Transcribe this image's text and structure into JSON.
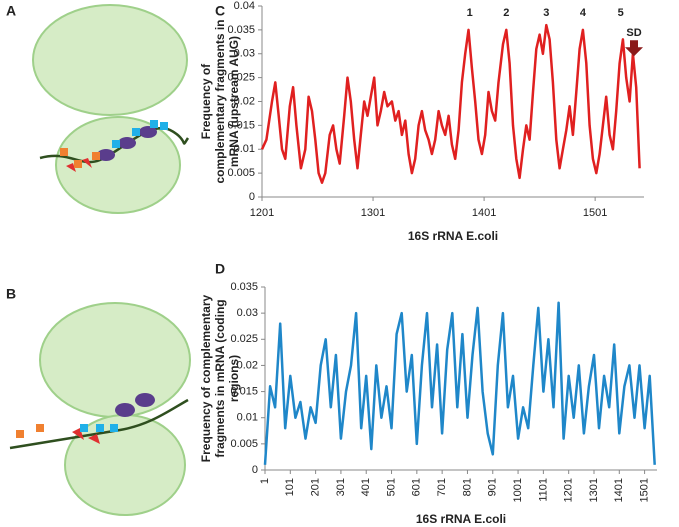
{
  "panel_labels": [
    "A",
    "B",
    "C",
    "D"
  ],
  "chart_data": [
    {
      "type": "line",
      "ylabel": [
        "Frequency of",
        "complementary fragments in",
        "mRNA (upstream AUG)"
      ],
      "xlabel": "16S rRNA E.coli",
      "color": "#e02020",
      "x": [
        1201,
        1205,
        1210,
        1213,
        1216,
        1219,
        1222,
        1226,
        1229,
        1232,
        1236,
        1240,
        1243,
        1246,
        1249,
        1252,
        1255,
        1258,
        1262,
        1265,
        1268,
        1271,
        1275,
        1278,
        1281,
        1284,
        1287,
        1290,
        1293,
        1296,
        1299,
        1302,
        1305,
        1308,
        1311,
        1314,
        1318,
        1321,
        1324,
        1327,
        1330,
        1333,
        1336,
        1339,
        1342,
        1345,
        1348,
        1351,
        1354,
        1357,
        1360,
        1363,
        1366,
        1369,
        1372,
        1375,
        1378,
        1381,
        1384,
        1387,
        1390,
        1393,
        1396,
        1399,
        1402,
        1405,
        1408,
        1411,
        1414,
        1418,
        1421,
        1424,
        1427,
        1430,
        1433,
        1436,
        1439,
        1442,
        1445,
        1448,
        1451,
        1454,
        1457,
        1460,
        1463,
        1466,
        1469,
        1472,
        1475,
        1478,
        1481,
        1484,
        1487,
        1490,
        1493,
        1496,
        1499,
        1502,
        1505,
        1508,
        1511,
        1514,
        1517,
        1520,
        1523,
        1526,
        1529,
        1532,
        1535,
        1538,
        1541
      ],
      "values": [
        0.01,
        0.012,
        0.02,
        0.024,
        0.017,
        0.01,
        0.008,
        0.019,
        0.023,
        0.015,
        0.006,
        0.01,
        0.021,
        0.018,
        0.012,
        0.005,
        0.003,
        0.005,
        0.013,
        0.015,
        0.01,
        0.007,
        0.017,
        0.025,
        0.02,
        0.012,
        0.006,
        0.013,
        0.02,
        0.017,
        0.021,
        0.025,
        0.015,
        0.018,
        0.022,
        0.019,
        0.02,
        0.016,
        0.018,
        0.013,
        0.016,
        0.009,
        0.005,
        0.008,
        0.015,
        0.018,
        0.014,
        0.012,
        0.009,
        0.012,
        0.018,
        0.015,
        0.013,
        0.017,
        0.011,
        0.008,
        0.014,
        0.024,
        0.03,
        0.035,
        0.027,
        0.02,
        0.012,
        0.009,
        0.013,
        0.022,
        0.018,
        0.016,
        0.024,
        0.032,
        0.035,
        0.028,
        0.015,
        0.008,
        0.004,
        0.01,
        0.015,
        0.012,
        0.022,
        0.031,
        0.034,
        0.03,
        0.036,
        0.033,
        0.024,
        0.012,
        0.006,
        0.01,
        0.014,
        0.019,
        0.013,
        0.022,
        0.031,
        0.035,
        0.028,
        0.015,
        0.008,
        0.005,
        0.009,
        0.015,
        0.021,
        0.013,
        0.01,
        0.018,
        0.028,
        0.033,
        0.025,
        0.02,
        0.03,
        0.023,
        0.006
      ],
      "xlim": [
        1201,
        1545
      ],
      "xticks": [
        1201,
        1301,
        1401,
        1501
      ],
      "ylim": [
        0,
        0.04
      ],
      "yticks": [
        0,
        0.005,
        0.01,
        0.015,
        0.02,
        0.025,
        0.03,
        0.035,
        0.04
      ],
      "annotations": [
        {
          "text": "1",
          "x": 1388,
          "y": 0.0385
        },
        {
          "text": "2",
          "x": 1421,
          "y": 0.0385
        },
        {
          "text": "3",
          "x": 1457,
          "y": 0.0385
        },
        {
          "text": "4",
          "x": 1490,
          "y": 0.0385
        },
        {
          "text": "5",
          "x": 1524,
          "y": 0.0385
        },
        {
          "text": "SD",
          "x": 1536,
          "y": 0.0343
        }
      ]
    },
    {
      "type": "line",
      "ylabel": [
        "Frequency of complementary",
        "fragments in mRNA (coding",
        "regions)"
      ],
      "xlabel": "16S rRNA E.coli",
      "color": "#1f87c9",
      "x": [
        1,
        21,
        41,
        61,
        81,
        101,
        121,
        141,
        161,
        181,
        201,
        221,
        241,
        261,
        281,
        301,
        321,
        341,
        361,
        381,
        401,
        421,
        441,
        461,
        481,
        501,
        521,
        541,
        561,
        581,
        601,
        621,
        641,
        661,
        681,
        701,
        721,
        741,
        761,
        781,
        801,
        821,
        841,
        861,
        881,
        901,
        921,
        941,
        961,
        981,
        1001,
        1021,
        1041,
        1061,
        1081,
        1101,
        1121,
        1141,
        1161,
        1181,
        1201,
        1221,
        1241,
        1261,
        1281,
        1301,
        1321,
        1341,
        1361,
        1381,
        1401,
        1421,
        1441,
        1461,
        1481,
        1501,
        1521,
        1541
      ],
      "values": [
        0.001,
        0.016,
        0.012,
        0.028,
        0.008,
        0.018,
        0.01,
        0.013,
        0.006,
        0.012,
        0.009,
        0.02,
        0.025,
        0.012,
        0.022,
        0.006,
        0.015,
        0.02,
        0.03,
        0.008,
        0.018,
        0.004,
        0.02,
        0.01,
        0.016,
        0.008,
        0.026,
        0.03,
        0.015,
        0.022,
        0.005,
        0.02,
        0.03,
        0.012,
        0.024,
        0.007,
        0.023,
        0.03,
        0.012,
        0.026,
        0.01,
        0.022,
        0.031,
        0.015,
        0.007,
        0.003,
        0.02,
        0.03,
        0.012,
        0.018,
        0.006,
        0.012,
        0.008,
        0.02,
        0.031,
        0.015,
        0.025,
        0.012,
        0.032,
        0.006,
        0.018,
        0.01,
        0.02,
        0.007,
        0.016,
        0.022,
        0.008,
        0.018,
        0.012,
        0.024,
        0.007,
        0.016,
        0.02,
        0.01,
        0.02,
        0.008,
        0.018,
        0.001
      ],
      "xlim": [
        1,
        1550
      ],
      "xticks": [
        1,
        101,
        201,
        301,
        401,
        501,
        601,
        701,
        801,
        901,
        1001,
        1101,
        1201,
        1301,
        1401,
        1501
      ],
      "ylim": [
        0,
        0.035
      ],
      "yticks": [
        0,
        0.005,
        0.01,
        0.015,
        0.02,
        0.025,
        0.03,
        0.035
      ]
    }
  ]
}
